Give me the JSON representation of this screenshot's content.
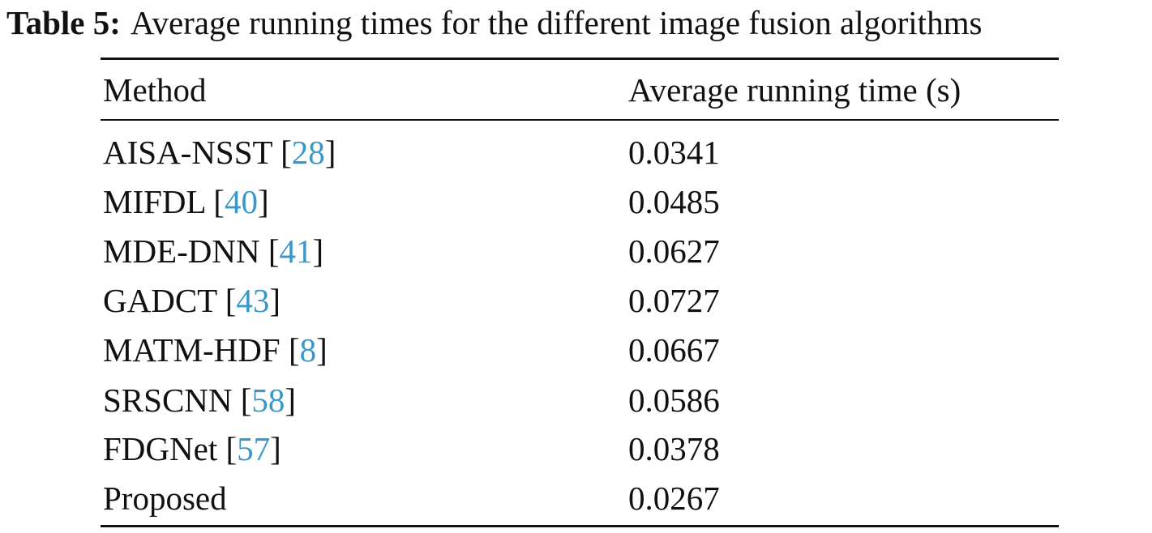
{
  "caption": {
    "label": "Table 5:",
    "text": "Average running times for the different image fusion algorithms"
  },
  "table": {
    "headers": {
      "method": "Method",
      "time": "Average running time (s)"
    },
    "rows": [
      {
        "method": "AISA-NSST",
        "ref": "28",
        "time": "0.0341"
      },
      {
        "method": "MIFDL",
        "ref": "40",
        "time": "0.0485"
      },
      {
        "method": "MDE-DNN",
        "ref": "41",
        "time": "0.0627"
      },
      {
        "method": "GADCT",
        "ref": "43",
        "time": "0.0727"
      },
      {
        "method": "MATM-HDF",
        "ref": "8",
        "time": "0.0667"
      },
      {
        "method": "SRSCNN",
        "ref": "58",
        "time": "0.0586"
      },
      {
        "method": "FDGNet",
        "ref": "57",
        "time": "0.0378"
      },
      {
        "method": "Proposed",
        "ref": null,
        "time": "0.0267"
      }
    ]
  },
  "colors": {
    "text": "#111111",
    "citation_link": "#3a98c9",
    "background": "#ffffff"
  }
}
